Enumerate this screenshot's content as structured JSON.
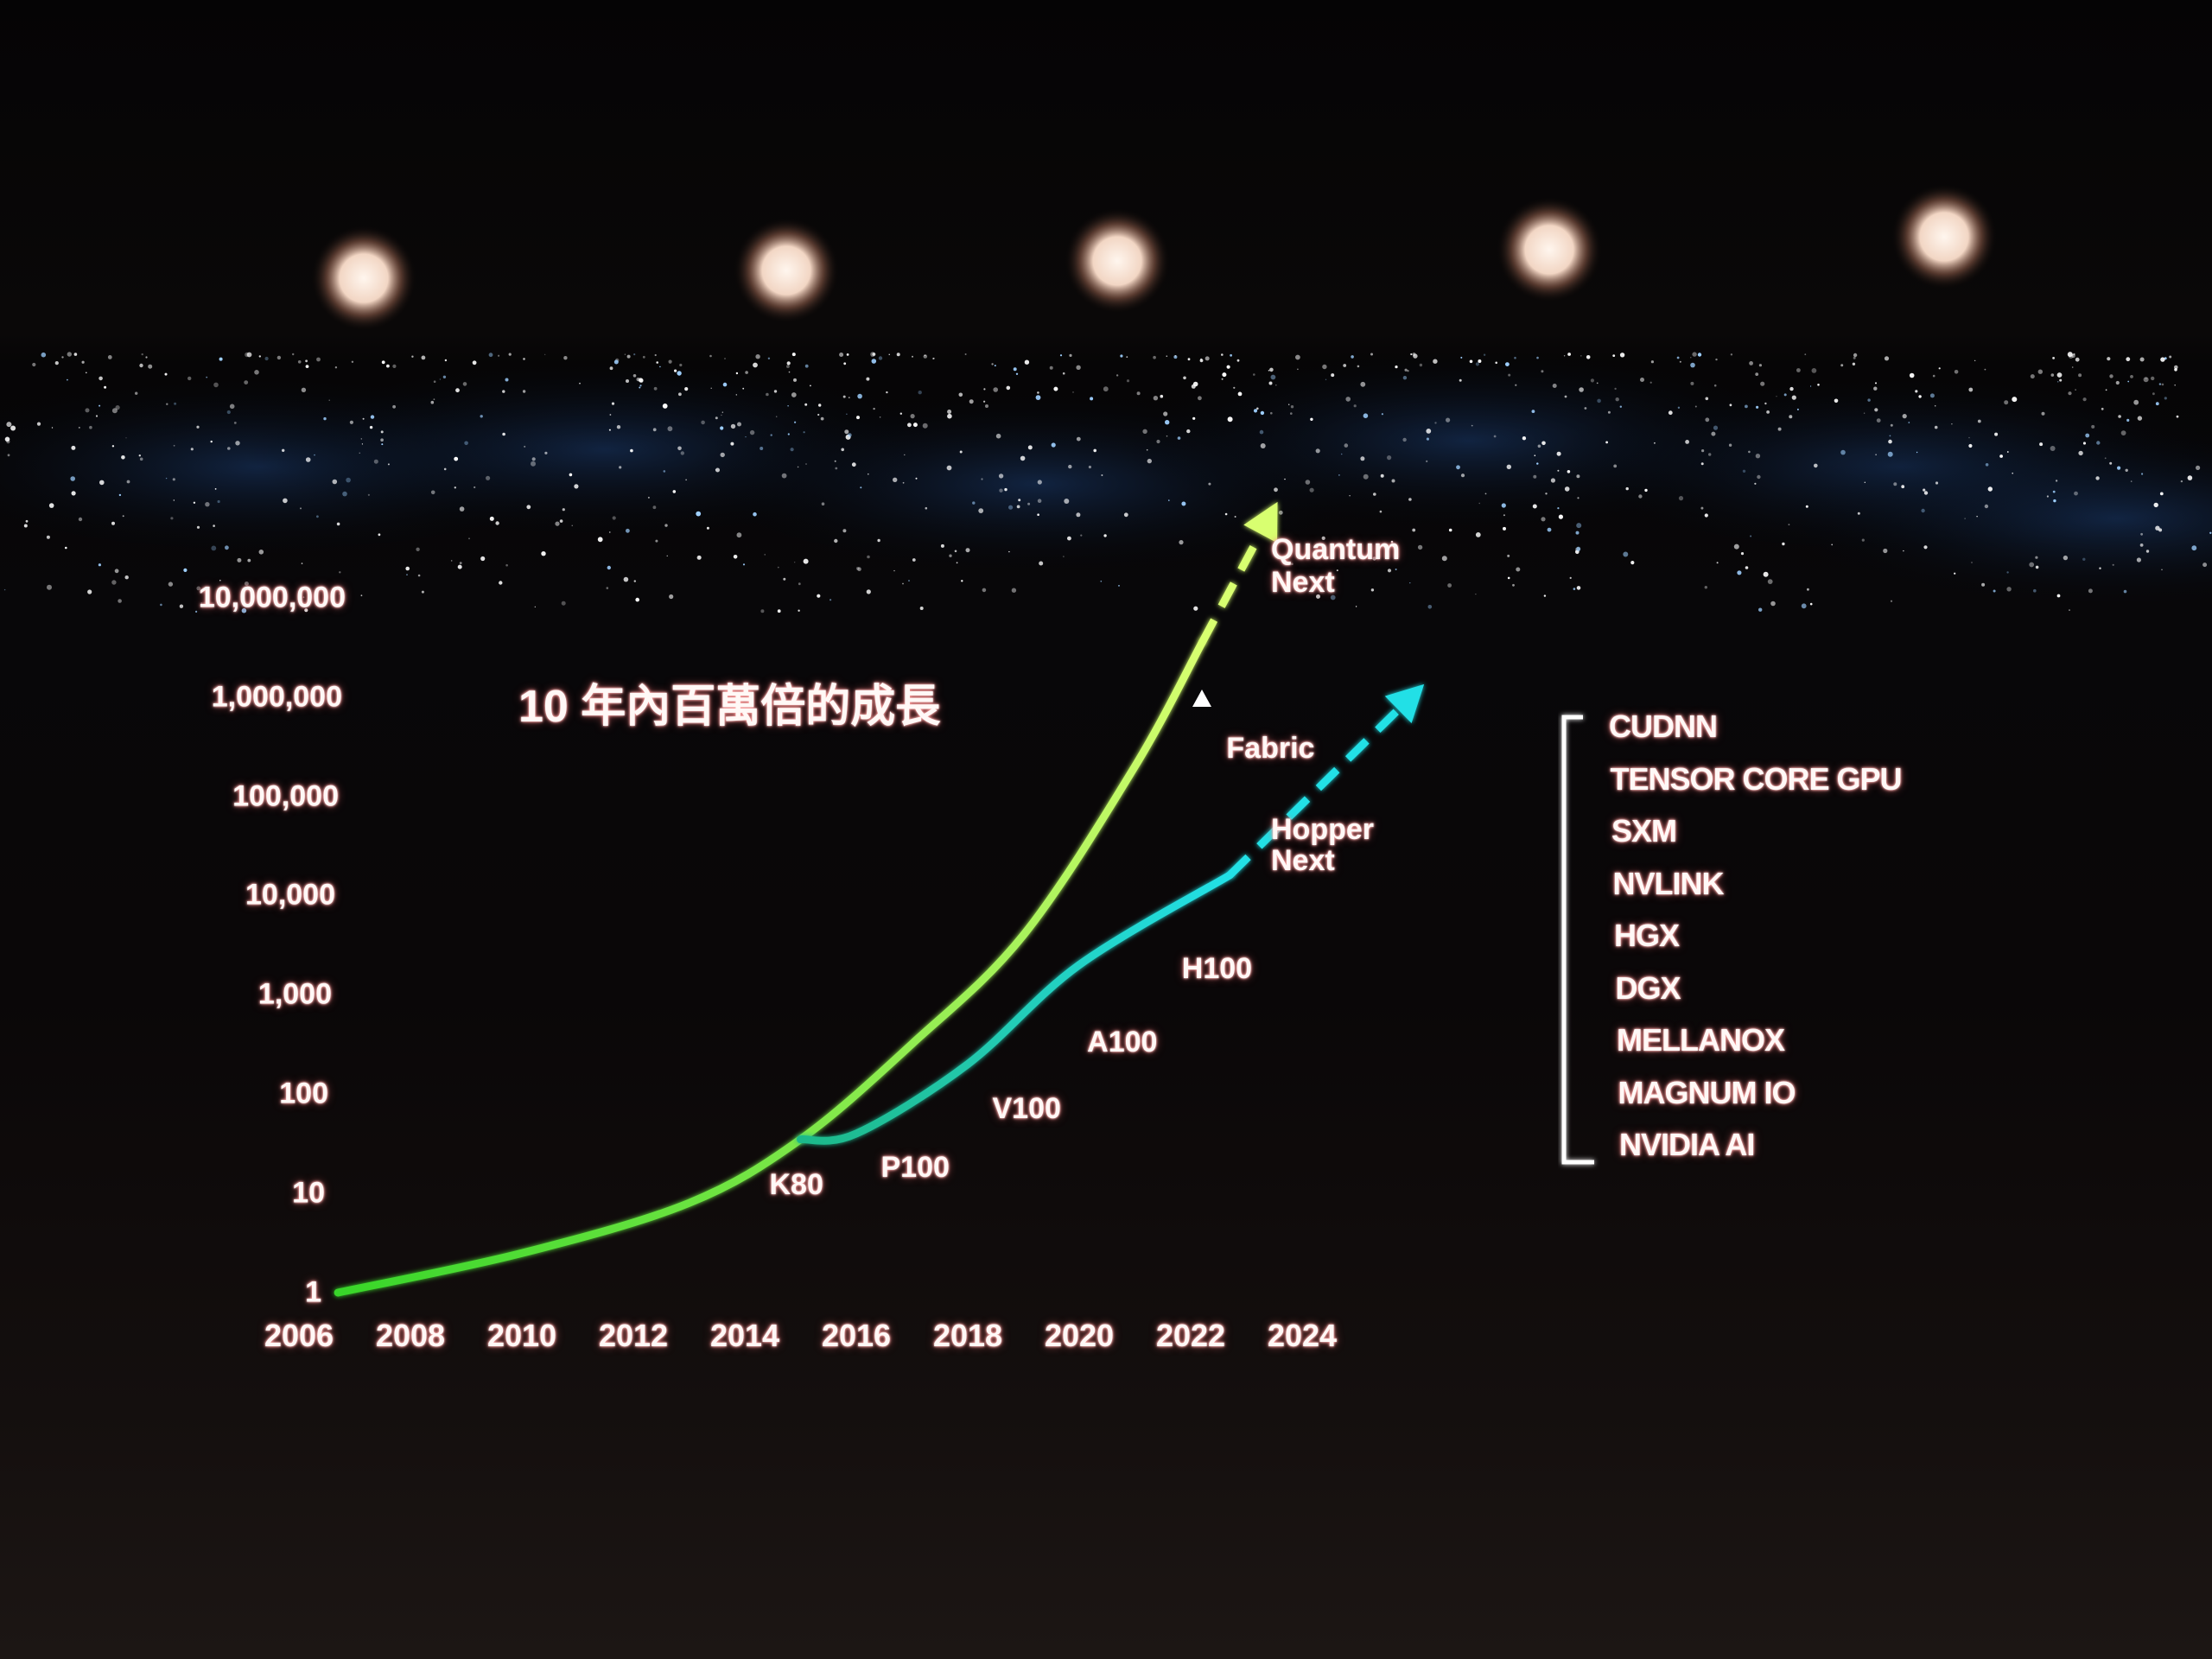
{
  "chart_data": {
    "type": "line",
    "title": "10 年內百萬倍的成長",
    "xlabel": "",
    "ylabel": "",
    "y_scale": "log",
    "ylim": [
      1,
      10000000
    ],
    "xlim": [
      2006,
      2024
    ],
    "y_ticks": [
      "10,000,000",
      "1,000,000",
      "100,000",
      "10,000",
      "1,000",
      "100",
      "10",
      "1"
    ],
    "x_ticks": [
      "2006",
      "2008",
      "2010",
      "2012",
      "2014",
      "2016",
      "2018",
      "2020",
      "2022",
      "2024"
    ],
    "grid": false,
    "series": [
      {
        "color": "#38d62a",
        "color_end": "#d8ff70",
        "points": [
          [
            2006.7,
            1
          ],
          [
            2010,
            2.5
          ],
          [
            2013,
            8
          ],
          [
            2015,
            35
          ],
          [
            2017,
            320
          ],
          [
            2019,
            4000
          ],
          [
            2021,
            200000
          ],
          [
            2022.2,
            3500000
          ]
        ],
        "projection": [
          [
            2022.2,
            3500000
          ],
          [
            2023.5,
            80000000
          ]
        ]
      },
      {
        "color": "#1fb98a",
        "color_end": "#22e0e6",
        "points": [
          [
            2015,
            35
          ],
          [
            2016,
            40
          ],
          [
            2018,
            200
          ],
          [
            2020,
            2000
          ],
          [
            2022.7,
            16000
          ]
        ],
        "projection": [
          [
            2022.7,
            16000
          ],
          [
            2026.1,
            1200000
          ]
        ]
      }
    ],
    "annotations": [
      {
        "text": "K80",
        "x": 2015,
        "y": 12
      },
      {
        "text": "P100",
        "x": 2017,
        "y": 18
      },
      {
        "text": "V100",
        "x": 2019,
        "y": 70
      },
      {
        "text": "A100",
        "x": 2020.7,
        "y": 330
      },
      {
        "text": "H100",
        "x": 2022.4,
        "y": 1800
      },
      {
        "text": "Fabric",
        "x": 2023.2,
        "y": 300000
      },
      {
        "text": "Hopper",
        "x": 2024,
        "y": 45000
      },
      {
        "text": "Next",
        "x": 2024,
        "y": 22000
      },
      {
        "text": "Quantum",
        "x": 2024,
        "y": 30000000
      },
      {
        "text": "Next",
        "x": 2024,
        "y": 14000000
      }
    ]
  },
  "stack_list": [
    "CUDNN",
    "TENSOR CORE GPU",
    "SXM",
    "NVLINK",
    "HGX",
    "DGX",
    "MELLANOX",
    "MAGNUM IO",
    "NVIDIA AI"
  ],
  "colors": {
    "text": "#ffffff",
    "glow": "#ff8080",
    "green": "#38d62a",
    "cyan": "#22e0e6"
  }
}
